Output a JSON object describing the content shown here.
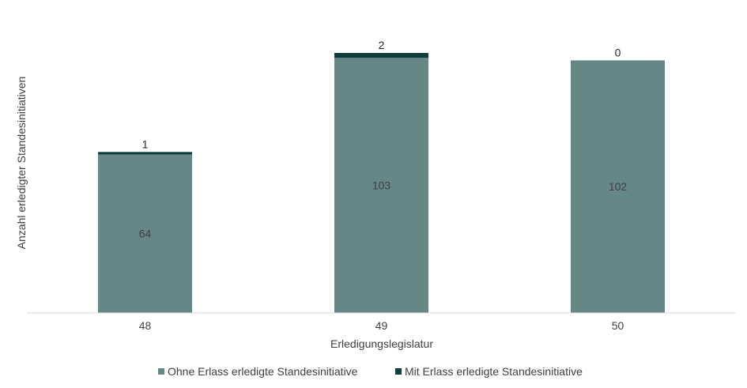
{
  "chart_data": {
    "type": "bar",
    "stacked": true,
    "categories": [
      "48",
      "49",
      "50"
    ],
    "series": [
      {
        "name": "Ohne Erlass erledigte Standesinitiative",
        "values": [
          64,
          103,
          102
        ],
        "color": "#668787"
      },
      {
        "name": "Mit Erlass erledigte Standesinitiative",
        "values": [
          1,
          2,
          0
        ],
        "color": "#0f3c3c"
      }
    ],
    "title": "",
    "xlabel": "Erledigungslegislatur",
    "ylabel": "Anzahl erledigter Standesinitiativen",
    "ylim": [
      0,
      105
    ],
    "grid": false,
    "legend_position": "bottom"
  }
}
